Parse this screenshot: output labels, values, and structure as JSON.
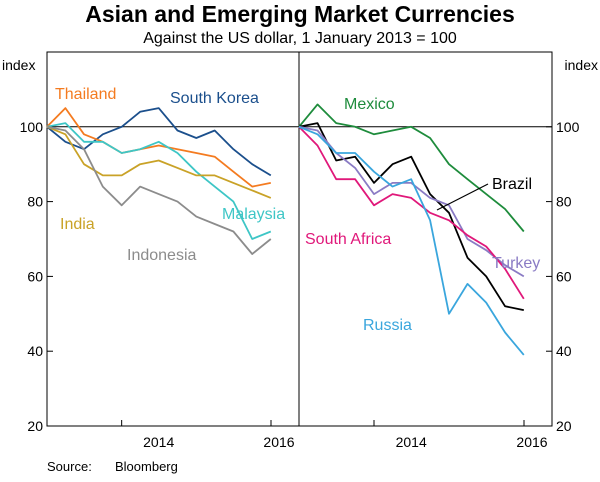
{
  "title": "Asian and Emerging Market Currencies",
  "subtitle": "Against the US dollar, 1 January 2013 = 100",
  "source_label": "Source:",
  "source_value": "Bloomberg",
  "chart_data": [
    {
      "type": "line",
      "panel": "left",
      "ylabel": "index",
      "ylim": [
        20,
        120
      ],
      "yticks": [
        20,
        40,
        60,
        80,
        100
      ],
      "xlim": [
        "2013-01-01",
        "2016-01-01"
      ],
      "xtick_labels": [
        "2014",
        "2016"
      ],
      "xticks": [
        "2014-01-01",
        "2016-01-01"
      ],
      "grid": false,
      "series": [
        {
          "name": "South Korea",
          "color": "#1b4f8c",
          "x": [
            "2013-01-01",
            "2013-04-01",
            "2013-07-01",
            "2013-10-01",
            "2014-01-01",
            "2014-04-01",
            "2014-07-01",
            "2014-10-01",
            "2015-01-01",
            "2015-04-01",
            "2015-07-01",
            "2015-10-01",
            "2015-12-31"
          ],
          "values": [
            100,
            96,
            94,
            98,
            100,
            104,
            105,
            99,
            97,
            99,
            94,
            90,
            87
          ]
        },
        {
          "name": "Thailand",
          "color": "#f47b20",
          "x": [
            "2013-01-01",
            "2013-04-01",
            "2013-07-01",
            "2013-10-01",
            "2014-01-01",
            "2014-04-01",
            "2014-07-01",
            "2014-10-01",
            "2015-01-01",
            "2015-04-01",
            "2015-07-01",
            "2015-10-01",
            "2015-12-31"
          ],
          "values": [
            100,
            105,
            98,
            96,
            93,
            94,
            95,
            94,
            93,
            92,
            88,
            84,
            85
          ]
        },
        {
          "name": "Malaysia",
          "color": "#3ec6c6",
          "x": [
            "2013-01-01",
            "2013-04-01",
            "2013-07-01",
            "2013-10-01",
            "2014-01-01",
            "2014-04-01",
            "2014-07-01",
            "2014-10-01",
            "2015-01-01",
            "2015-04-01",
            "2015-07-01",
            "2015-10-01",
            "2015-12-31"
          ],
          "values": [
            100,
            101,
            96,
            96,
            93,
            94,
            96,
            93,
            88,
            84,
            80,
            70,
            72
          ]
        },
        {
          "name": "India",
          "color": "#c9a227",
          "x": [
            "2013-01-01",
            "2013-04-01",
            "2013-07-01",
            "2013-10-01",
            "2014-01-01",
            "2014-04-01",
            "2014-07-01",
            "2014-10-01",
            "2015-01-01",
            "2015-04-01",
            "2015-07-01",
            "2015-10-01",
            "2015-12-31"
          ],
          "values": [
            100,
            98,
            90,
            87,
            87,
            90,
            91,
            89,
            87,
            87,
            85,
            83,
            81
          ]
        },
        {
          "name": "Indonesia",
          "color": "#8c8c8c",
          "x": [
            "2013-01-01",
            "2013-04-01",
            "2013-07-01",
            "2013-10-01",
            "2014-01-01",
            "2014-04-01",
            "2014-07-01",
            "2014-10-01",
            "2015-01-01",
            "2015-04-01",
            "2015-07-01",
            "2015-10-01",
            "2015-12-31"
          ],
          "values": [
            100,
            99,
            94,
            84,
            79,
            84,
            82,
            80,
            76,
            74,
            72,
            66,
            70
          ]
        }
      ]
    },
    {
      "type": "line",
      "panel": "right",
      "ylabel": "index",
      "ylim": [
        20,
        120
      ],
      "yticks": [
        20,
        40,
        60,
        80,
        100
      ],
      "xlim": [
        "2013-01-01",
        "2016-01-01"
      ],
      "xtick_labels": [
        "2014",
        "2016"
      ],
      "xticks": [
        "2014-01-01",
        "2016-01-01"
      ],
      "grid": false,
      "series": [
        {
          "name": "Mexico",
          "color": "#1e8c3c",
          "x": [
            "2013-01-01",
            "2013-04-01",
            "2013-07-01",
            "2013-10-01",
            "2014-01-01",
            "2014-04-01",
            "2014-07-01",
            "2014-10-01",
            "2015-01-01",
            "2015-04-01",
            "2015-07-01",
            "2015-10-01",
            "2015-12-31"
          ],
          "values": [
            100,
            106,
            101,
            100,
            98,
            99,
            100,
            97,
            90,
            86,
            82,
            78,
            72
          ]
        },
        {
          "name": "Brazil",
          "color": "#000000",
          "x": [
            "2013-01-01",
            "2013-04-01",
            "2013-07-01",
            "2013-10-01",
            "2014-01-01",
            "2014-04-01",
            "2014-07-01",
            "2014-10-01",
            "2015-01-01",
            "2015-04-01",
            "2015-07-01",
            "2015-10-01",
            "2015-12-31"
          ],
          "values": [
            100,
            101,
            91,
            92,
            85,
            90,
            92,
            82,
            77,
            65,
            60,
            52,
            51
          ]
        },
        {
          "name": "Turkey",
          "color": "#8a7bc4",
          "x": [
            "2013-01-01",
            "2013-04-01",
            "2013-07-01",
            "2013-10-01",
            "2014-01-01",
            "2014-04-01",
            "2014-07-01",
            "2014-10-01",
            "2015-01-01",
            "2015-04-01",
            "2015-07-01",
            "2015-10-01",
            "2015-12-31"
          ],
          "values": [
            100,
            99,
            93,
            89,
            82,
            85,
            85,
            81,
            79,
            70,
            67,
            63,
            60
          ]
        },
        {
          "name": "South Africa",
          "color": "#e0187a",
          "x": [
            "2013-01-01",
            "2013-04-01",
            "2013-07-01",
            "2013-10-01",
            "2014-01-01",
            "2014-04-01",
            "2014-07-01",
            "2014-10-01",
            "2015-01-01",
            "2015-04-01",
            "2015-07-01",
            "2015-10-01",
            "2015-12-31"
          ],
          "values": [
            100,
            95,
            86,
            86,
            79,
            82,
            81,
            77,
            75,
            71,
            68,
            62,
            54
          ]
        },
        {
          "name": "Russia",
          "color": "#3aa6dd",
          "x": [
            "2013-01-01",
            "2013-04-01",
            "2013-07-01",
            "2013-10-01",
            "2014-01-01",
            "2014-04-01",
            "2014-07-01",
            "2014-10-01",
            "2015-01-01",
            "2015-04-01",
            "2015-07-01",
            "2015-10-01",
            "2015-12-31"
          ],
          "values": [
            100,
            98,
            93,
            93,
            88,
            84,
            86,
            75,
            50,
            58,
            53,
            45,
            39
          ]
        }
      ]
    }
  ]
}
